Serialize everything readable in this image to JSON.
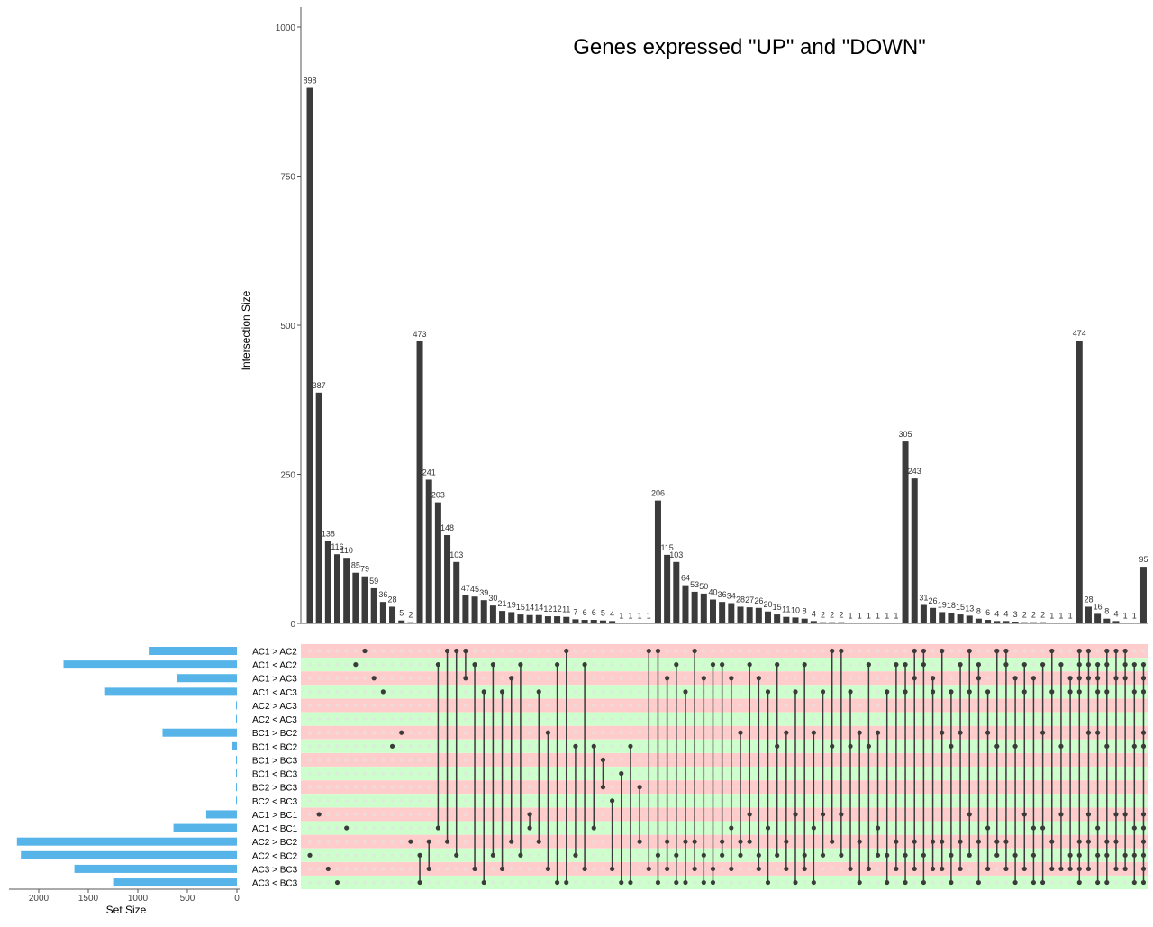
{
  "chart_data": {
    "type": "upset",
    "title": "Genes expressed \"UP\" and \"DOWN\"",
    "ylabel": "Intersection Size",
    "set_size_label": "Set Size",
    "y_ticks": [
      "0",
      "250",
      "500",
      "750",
      "1000"
    ],
    "ylim": [
      0,
      1000
    ],
    "set_size_ticks": [
      "2000",
      "1500",
      "1000",
      "500",
      "0"
    ],
    "set_size_lim": [
      0,
      2000
    ],
    "colors": {
      "bar": "#3b3b3b",
      "set_bar": "#56b4e9",
      "dot": "#3b3b3b",
      "row_a": "#ffcccc",
      "row_b": "#ccffcc"
    },
    "sets": [
      {
        "name": "AC1 > AC2",
        "size": 890
      },
      {
        "name": "AC1 < AC2",
        "size": 1750
      },
      {
        "name": "AC1 > AC3",
        "size": 600
      },
      {
        "name": "AC1 < AC3",
        "size": 1330
      },
      {
        "name": "AC2 > AC3",
        "size": 8
      },
      {
        "name": "AC2 < AC3",
        "size": 8
      },
      {
        "name": "BC1 > BC2",
        "size": 750
      },
      {
        "name": "BC1 < BC2",
        "size": 50
      },
      {
        "name": "BC1 > BC3",
        "size": 8
      },
      {
        "name": "BC1 < BC3",
        "size": 8
      },
      {
        "name": "BC2 > BC3",
        "size": 8
      },
      {
        "name": "BC2 < BC3",
        "size": 8
      },
      {
        "name": "AC1 > BC1",
        "size": 310
      },
      {
        "name": "AC1 < BC1",
        "size": 640
      },
      {
        "name": "AC2 > BC2",
        "size": 2220
      },
      {
        "name": "AC2 < BC2",
        "size": 2180
      },
      {
        "name": "AC3 > BC3",
        "size": 1640
      },
      {
        "name": "AC3 < BC3",
        "size": 1240
      }
    ],
    "intersections": [
      {
        "value": 898,
        "label": "898",
        "sets": [
          15
        ]
      },
      {
        "value": 387,
        "label": "387",
        "sets": [
          12
        ]
      },
      {
        "value": 138,
        "label": "138",
        "sets": [
          16
        ]
      },
      {
        "value": 116,
        "label": "116",
        "sets": [
          17
        ]
      },
      {
        "value": 110,
        "label": "110",
        "sets": [
          13
        ]
      },
      {
        "value": 85,
        "label": "85",
        "sets": [
          1
        ]
      },
      {
        "value": 79,
        "label": "79",
        "sets": [
          0
        ]
      },
      {
        "value": 59,
        "label": "59",
        "sets": [
          2
        ]
      },
      {
        "value": 36,
        "label": "36",
        "sets": [
          3
        ]
      },
      {
        "value": 28,
        "label": "28",
        "sets": [
          7
        ]
      },
      {
        "value": 5,
        "label": "5",
        "sets": [
          6
        ]
      },
      {
        "value": 2,
        "label": "2",
        "sets": [
          14
        ]
      },
      {
        "value": 473,
        "label": "473",
        "sets": [
          15,
          17
        ]
      },
      {
        "value": 241,
        "label": "241",
        "sets": [
          14,
          16
        ]
      },
      {
        "value": 203,
        "label": "203",
        "sets": [
          1,
          13
        ]
      },
      {
        "value": 148,
        "label": "148",
        "sets": [
          0,
          14
        ]
      },
      {
        "value": 103,
        "label": "103",
        "sets": [
          0,
          15
        ]
      },
      {
        "value": 47,
        "label": "47",
        "sets": [
          0,
          2
        ]
      },
      {
        "value": 45,
        "label": "45",
        "sets": [
          1,
          16
        ]
      },
      {
        "value": 39,
        "label": "39",
        "sets": [
          3,
          17
        ]
      },
      {
        "value": 30,
        "label": "30",
        "sets": [
          1,
          15
        ]
      },
      {
        "value": 21,
        "label": "21",
        "sets": [
          3,
          16
        ]
      },
      {
        "value": 19,
        "label": "19",
        "sets": [
          2,
          14
        ]
      },
      {
        "value": 15,
        "label": "15",
        "sets": [
          1,
          15
        ]
      },
      {
        "value": 14,
        "label": "14",
        "sets": [
          12,
          13
        ]
      },
      {
        "value": 14,
        "label": "14",
        "sets": [
          3,
          14
        ]
      },
      {
        "value": 12,
        "label": "12",
        "sets": [
          6,
          16
        ]
      },
      {
        "value": 12,
        "label": "12",
        "sets": [
          1,
          17
        ]
      },
      {
        "value": 11,
        "label": "11",
        "sets": [
          0,
          17
        ]
      },
      {
        "value": 7,
        "label": "7",
        "sets": [
          7,
          15
        ]
      },
      {
        "value": 6,
        "label": "6",
        "sets": [
          1,
          16
        ]
      },
      {
        "value": 6,
        "label": "6",
        "sets": [
          7,
          13
        ]
      },
      {
        "value": 5,
        "label": "5",
        "sets": [
          8,
          10
        ]
      },
      {
        "value": 4,
        "label": "4",
        "sets": [
          11,
          16
        ]
      },
      {
        "value": 1,
        "label": "1",
        "sets": [
          9,
          17
        ]
      },
      {
        "value": 1,
        "label": "1",
        "sets": [
          7,
          17
        ]
      },
      {
        "value": 1,
        "label": "1",
        "sets": [
          10,
          14
        ]
      },
      {
        "value": 1,
        "label": "1",
        "sets": [
          0,
          16
        ]
      },
      {
        "value": 206,
        "label": "206",
        "sets": [
          0,
          15,
          17
        ]
      },
      {
        "value": 115,
        "label": "115",
        "sets": [
          2,
          14,
          16
        ]
      },
      {
        "value": 103,
        "label": "103",
        "sets": [
          1,
          15,
          17
        ]
      },
      {
        "value": 64,
        "label": "64",
        "sets": [
          3,
          14,
          17
        ]
      },
      {
        "value": 53,
        "label": "53",
        "sets": [
          0,
          14,
          16
        ]
      },
      {
        "value": 50,
        "label": "50",
        "sets": [
          2,
          15,
          17
        ]
      },
      {
        "value": 40,
        "label": "40",
        "sets": [
          1,
          16,
          17
        ]
      },
      {
        "value": 36,
        "label": "36",
        "sets": [
          1,
          14,
          15
        ]
      },
      {
        "value": 34,
        "label": "34",
        "sets": [
          2,
          13,
          16
        ]
      },
      {
        "value": 28,
        "label": "28",
        "sets": [
          6,
          14,
          15
        ]
      },
      {
        "value": 27,
        "label": "27",
        "sets": [
          1,
          12,
          14
        ]
      },
      {
        "value": 26,
        "label": "26",
        "sets": [
          2,
          15,
          16
        ]
      },
      {
        "value": 20,
        "label": "20",
        "sets": [
          3,
          13,
          17
        ]
      },
      {
        "value": 15,
        "label": "15",
        "sets": [
          1,
          7,
          15
        ]
      },
      {
        "value": 11,
        "label": "11",
        "sets": [
          6,
          14,
          16
        ]
      },
      {
        "value": 10,
        "label": "10",
        "sets": [
          3,
          12,
          17
        ]
      },
      {
        "value": 8,
        "label": "8",
        "sets": [
          1,
          15,
          16
        ]
      },
      {
        "value": 4,
        "label": "4",
        "sets": [
          6,
          13,
          17
        ]
      },
      {
        "value": 2,
        "label": "2",
        "sets": [
          3,
          12,
          15
        ]
      },
      {
        "value": 2,
        "label": "2",
        "sets": [
          0,
          7,
          14
        ]
      },
      {
        "value": 2,
        "label": "2",
        "sets": [
          0,
          12,
          15
        ]
      },
      {
        "value": 1,
        "label": "1",
        "sets": [
          3,
          7,
          16
        ]
      },
      {
        "value": 1,
        "label": "1",
        "sets": [
          6,
          14,
          17
        ]
      },
      {
        "value": 1,
        "label": "1",
        "sets": [
          1,
          7,
          16
        ]
      },
      {
        "value": 1,
        "label": "1",
        "sets": [
          6,
          13,
          15
        ]
      },
      {
        "value": 1,
        "label": "1",
        "sets": [
          3,
          15,
          17
        ]
      },
      {
        "value": 1,
        "label": "1",
        "sets": [
          1,
          14,
          16
        ]
      },
      {
        "value": 305,
        "label": "305",
        "sets": [
          1,
          3,
          15,
          17
        ]
      },
      {
        "value": 243,
        "label": "243",
        "sets": [
          0,
          2,
          14,
          16
        ]
      },
      {
        "value": 31,
        "label": "31",
        "sets": [
          0,
          1,
          15,
          17
        ]
      },
      {
        "value": 26,
        "label": "26",
        "sets": [
          2,
          3,
          14,
          16
        ]
      },
      {
        "value": 19,
        "label": "19",
        "sets": [
          0,
          6,
          14,
          16
        ]
      },
      {
        "value": 18,
        "label": "18",
        "sets": [
          3,
          7,
          15,
          17
        ]
      },
      {
        "value": 15,
        "label": "15",
        "sets": [
          1,
          6,
          14,
          16
        ]
      },
      {
        "value": 13,
        "label": "13",
        "sets": [
          0,
          3,
          12,
          15
        ]
      },
      {
        "value": 8,
        "label": "8",
        "sets": [
          1,
          2,
          14,
          17
        ]
      },
      {
        "value": 6,
        "label": "6",
        "sets": [
          3,
          6,
          13,
          16
        ]
      },
      {
        "value": 4,
        "label": "4",
        "sets": [
          0,
          7,
          14,
          15
        ]
      },
      {
        "value": 4,
        "label": "4",
        "sets": [
          0,
          1,
          14,
          16
        ]
      },
      {
        "value": 3,
        "label": "3",
        "sets": [
          2,
          7,
          15,
          17
        ]
      },
      {
        "value": 2,
        "label": "2",
        "sets": [
          1,
          3,
          12,
          16
        ]
      },
      {
        "value": 2,
        "label": "2",
        "sets": [
          2,
          13,
          15,
          17
        ]
      },
      {
        "value": 2,
        "label": "2",
        "sets": [
          1,
          6,
          13,
          17
        ]
      },
      {
        "value": 1,
        "label": "1",
        "sets": [
          0,
          3,
          14,
          16
        ]
      },
      {
        "value": 1,
        "label": "1",
        "sets": [
          1,
          7,
          12,
          16
        ]
      },
      {
        "value": 1,
        "label": "1",
        "sets": [
          2,
          3,
          15,
          16
        ]
      },
      {
        "value": 474,
        "label": "474",
        "sets": [
          0,
          1,
          2,
          3,
          14,
          15,
          16,
          17
        ]
      },
      {
        "value": 28,
        "label": "28",
        "sets": [
          0,
          1,
          2,
          6,
          12,
          14,
          16
        ]
      },
      {
        "value": 16,
        "label": "16",
        "sets": [
          1,
          2,
          3,
          6,
          13,
          15,
          17
        ]
      },
      {
        "value": 8,
        "label": "8",
        "sets": [
          0,
          1,
          3,
          7,
          14,
          15,
          17
        ]
      },
      {
        "value": 4,
        "label": "4",
        "sets": [
          0,
          2,
          12,
          14,
          16
        ]
      },
      {
        "value": 1,
        "label": "1",
        "sets": [
          0,
          1,
          2,
          12,
          15,
          16
        ]
      },
      {
        "value": 1,
        "label": "1",
        "sets": [
          1,
          3,
          7,
          13,
          15,
          17
        ]
      },
      {
        "value": 95,
        "label": "95",
        "sets": [
          1,
          2,
          3,
          6,
          7,
          12,
          13,
          14,
          15,
          16,
          17
        ]
      }
    ]
  }
}
